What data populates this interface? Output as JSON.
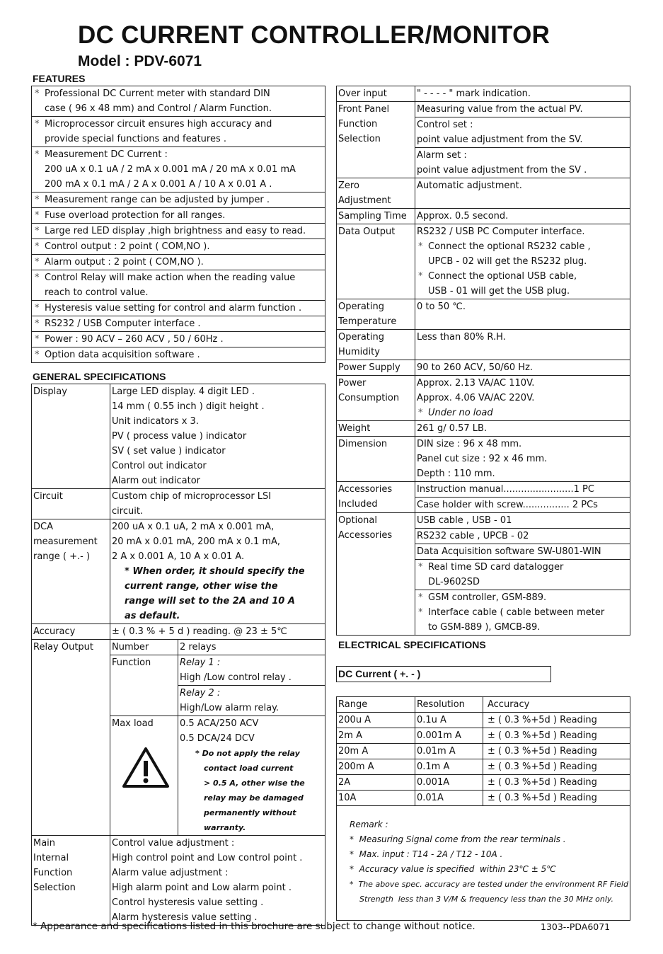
{
  "title": "DC CURRENT CONTROLLER/MONITOR",
  "model": "Model : PDV-6071",
  "features_heading": "FEATURES",
  "features": [
    {
      "lines": [
        {
          "text": "Professional DC Current meter with standard DIN",
          "kind": "bullet"
        },
        {
          "text": "case ( 96 x 48 mm)  and Control / Alarm Function.",
          "kind": "cont"
        }
      ]
    },
    {
      "lines": [
        {
          "text": "Microprocessor circuit ensures high accuracy and",
          "kind": "bullet"
        },
        {
          "text": "provide special functions and features .",
          "kind": "cont"
        }
      ]
    },
    {
      "lines": [
        {
          "text": "Measurement DC Current :",
          "kind": "bullet"
        },
        {
          "text": "200 uA x 0.1 uA / 2 mA x 0.001 mA / 20 mA x 0.01 mA",
          "kind": "cont"
        },
        {
          "text": "200 mA x 0.1 mA / 2 A x 0.001 A / 10 A x 0.01 A .",
          "kind": "cont"
        }
      ]
    },
    {
      "lines": [
        {
          "text": "Measurement range can be adjusted by jumper .",
          "kind": "bullet"
        }
      ]
    },
    {
      "lines": [
        {
          "text": "Fuse overload protection for all ranges.",
          "kind": "bullet"
        }
      ]
    },
    {
      "lines": [
        {
          "text": "Large red LED display ,high brightness and easy to read.",
          "kind": "bullet"
        }
      ]
    },
    {
      "lines": [
        {
          "text": "Control output : 2 point  ( COM,NO ).",
          "kind": "bullet"
        }
      ]
    },
    {
      "lines": [
        {
          "text": "Alarm output  : 2 point  ( COM,NO ).",
          "kind": "bullet"
        }
      ]
    },
    {
      "lines": [
        {
          "text": "Control Relay will make action when the reading value",
          "kind": "bullet"
        },
        {
          "text": "reach to control value.",
          "kind": "cont"
        }
      ]
    },
    {
      "lines": [
        {
          "text": "Hysteresis value setting for control and alarm function .",
          "kind": "bullet"
        }
      ]
    },
    {
      "lines": [
        {
          "text": "RS232 / USB Computer interface .",
          "kind": "bullet"
        }
      ]
    },
    {
      "lines": [
        {
          "text": "Power : 90 ACV –  260 ACV , 50 / 60Hz .",
          "kind": "bullet"
        }
      ]
    },
    {
      "lines": [
        {
          "text": "Option data acquisition software .",
          "kind": "bullet"
        }
      ]
    }
  ],
  "general_heading": "GENERAL SPECIFICATIONS",
  "general": [
    {
      "label": [
        "Display"
      ],
      "groups": [
        [
          {
            "text": "Large LED display. 4 digit LED ."
          },
          {
            "text": "14 mm ( 0.55 inch ) digit height ."
          },
          {
            "text": "Unit indicators x 3."
          },
          {
            "text": "PV ( process value ) indicator"
          },
          {
            "text": "SV ( set value ) indicator"
          },
          {
            "text": "Control out indicator"
          },
          {
            "text": "Alarm out indicator"
          }
        ]
      ]
    },
    {
      "label": [
        "Circuit"
      ],
      "groups": [
        [
          {
            "text": "Custom chip of microprocessor LSI"
          },
          {
            "text": "circuit."
          }
        ]
      ]
    },
    {
      "label": [
        "DCA",
        "measurement",
        "range ( +.- )"
      ],
      "groups": [
        [
          {
            "text": "200 uA x 0.1 uA, 2 mA x 0.001 mA,"
          },
          {
            "text": "20 mA x 0.01 mA, 200 mA x 0.1 mA,"
          },
          {
            "text": "2 A x 0.001 A, 10 A x 0.01 A."
          },
          {
            "text": "* When order, it should specify the",
            "kind": "note"
          },
          {
            "text": "current range, other wise the",
            "kind": "note cont"
          },
          {
            "text": "range will set to the 2A and 10 A",
            "kind": "note cont"
          },
          {
            "text": "as default.",
            "kind": "note cont"
          }
        ]
      ]
    },
    {
      "label": [
        "Accuracy"
      ],
      "groups": [
        [
          {
            "text": "±  ( 0.3 % + 5 d ) reading.  @ 23 ±  5℃"
          }
        ]
      ]
    }
  ],
  "relay": {
    "label": "Relay Output",
    "rows": [
      {
        "key": "Number",
        "groups": [
          [
            {
              "text": "2 relays"
            }
          ]
        ]
      },
      {
        "key": "Function",
        "groups": [
          [
            {
              "text": "Relay 1 :",
              "kind": "italic"
            },
            {
              "text": "High /Low control relay ."
            }
          ],
          [
            {
              "text": "Relay 2 :",
              "kind": "italic"
            },
            {
              "text": "High/Low alarm relay."
            }
          ]
        ]
      },
      {
        "key": "Max load",
        "icon": "warning-triangle",
        "groups": [
          [
            {
              "text": "0.5 ACA/250 ACV"
            },
            {
              "text": "0.5 DCA/24 DCV"
            },
            {
              "text": "* Do not apply the relay",
              "kind": "warn1"
            },
            {
              "text": "contact load current",
              "kind": "warn"
            },
            {
              "text": "> 0.5 A, other wise the",
              "kind": "warn"
            },
            {
              "text": "relay may be damaged",
              "kind": "warn"
            },
            {
              "text": "permanently without",
              "kind": "warn"
            },
            {
              "text": "warranty.",
              "kind": "warn"
            }
          ]
        ]
      }
    ]
  },
  "main_internal": {
    "label": [
      "Main",
      "Internal",
      "Function",
      "Selection"
    ],
    "lines": [
      "Control value adjustment :",
      "High control point and Low control point .",
      "Alarm value adjustment :",
      "High alarm point and Low alarm point .",
      "Control hysteresis value setting .",
      "Alarm hysteresis value setting ."
    ]
  },
  "right": [
    {
      "label": [
        "Over input"
      ],
      "groups": [
        [
          {
            "text": "\" - - - - \" mark indication."
          }
        ]
      ]
    },
    {
      "label": [
        "Front Panel",
        "Function",
        "Selection"
      ],
      "groups": [
        [
          {
            "text": "Measuring value from the actual PV."
          }
        ],
        [
          {
            "text": "Control set :"
          },
          {
            "text": "point value adjustment from the SV."
          }
        ],
        [
          {
            "text": "Alarm set :"
          },
          {
            "text": "point value adjustment from the SV ."
          }
        ]
      ]
    },
    {
      "label": [
        "Zero",
        "Adjustment"
      ],
      "groups": [
        [
          {
            "text": "Automatic adjustment."
          },
          {
            "text": ""
          }
        ]
      ]
    },
    {
      "label": [
        "Sampling Time"
      ],
      "groups": [
        [
          {
            "text": "Approx. 0.5 second."
          }
        ]
      ]
    },
    {
      "label": [
        "Data Output"
      ],
      "groups": [
        [
          {
            "text": "RS232 / USB PC Computer interface."
          },
          {
            "text": "Connect the optional RS232 cable ,",
            "kind": "bullet"
          },
          {
            "text": "UPCB - 02 will get the RS232 plug.",
            "kind": "cont"
          },
          {
            "text": "Connect the optional USB cable,",
            "kind": "bullet"
          },
          {
            "text": "USB - 01 will get the USB plug.",
            "kind": "cont"
          }
        ]
      ]
    },
    {
      "label": [
        "Operating",
        "Temperature"
      ],
      "groups": [
        [
          {
            "text": "0 to 50 ℃."
          },
          {
            "text": ""
          }
        ]
      ]
    },
    {
      "label": [
        "Operating",
        "Humidity"
      ],
      "groups": [
        [
          {
            "text": "Less than 80% R.H."
          },
          {
            "text": ""
          }
        ]
      ]
    },
    {
      "label": [
        "Power Supply"
      ],
      "groups": [
        [
          {
            "text": "90 to 260 ACV, 50/60 Hz."
          }
        ]
      ]
    },
    {
      "label": [
        "Power",
        "Consumption"
      ],
      "groups": [
        [
          {
            "text": "Approx. 2.13 VA/AC 110V."
          },
          {
            "text": "Approx. 4.06 VA/AC 220V."
          },
          {
            "text": "Under no load",
            "kind": "bullet italic"
          }
        ]
      ]
    },
    {
      "label": [
        "Weight"
      ],
      "groups": [
        [
          {
            "text": "261 g/ 0.57 LB."
          }
        ]
      ]
    },
    {
      "label": [
        "Dimension"
      ],
      "groups": [
        [
          {
            "text": "DIN size : 96 x 48 mm."
          },
          {
            "text": "Panel cut size : 92 x 46 mm."
          },
          {
            "text": "Depth  : 110 mm."
          }
        ]
      ]
    },
    {
      "label": [
        "Accessories",
        "Included"
      ],
      "groups": [
        [
          {
            "text": "Instruction manual........................1 PC"
          }
        ],
        [
          {
            "text": "Case holder with screw................ 2 PCs"
          }
        ]
      ]
    },
    {
      "label": [
        "Optional",
        "Accessories"
      ],
      "groups": [
        [
          {
            "text": "USB cable , USB - 01"
          }
        ],
        [
          {
            "text": "RS232 cable , UPCB - 02"
          }
        ],
        [
          {
            "text": "Data Acquisition software SW-U801-WIN"
          }
        ],
        [
          {
            "text": "Real time SD card datalogger",
            "kind": "bullet"
          },
          {
            "text": "DL-9602SD",
            "kind": "cont"
          }
        ],
        [
          {
            "text": "GSM controller, GSM-889.",
            "kind": "bullet"
          },
          {
            "text": "Interface cable ( cable between meter",
            "kind": "bullet"
          },
          {
            "text": "to GSM-889 ), GMCB-89.",
            "kind": "cont"
          }
        ]
      ]
    }
  ],
  "electrical_heading": "ELECTRICAL SPECIFICATIONS",
  "dc_current_label": "DC Current ( +. - )",
  "range_table": {
    "headers": [
      "Range",
      "Resolution",
      "Accuracy"
    ],
    "rows": [
      [
        "200u A",
        "0.1u A",
        "± ( 0.3 %+5d )  Reading"
      ],
      [
        "2m A",
        "0.001m A",
        "± ( 0.3 %+5d )  Reading"
      ],
      [
        "20m A",
        "0.01m A",
        "± ( 0.3 %+5d )  Reading"
      ],
      [
        "200m A",
        "0.1m A",
        "± ( 0.3 %+5d )  Reading"
      ],
      [
        "2A",
        "0.001A",
        "± ( 0.3 %+5d )  Reading"
      ],
      [
        "10A",
        "0.01A",
        "± ( 0.3 %+5d )  Reading"
      ]
    ]
  },
  "remark": {
    "title": "Remark :",
    "items": [
      "*  Measuring Signal come from the rear terminals .",
      "*  Max. input : T14 - 2A / T12 - 10A .",
      "*  Accuracy value is specified  within 23℃ ± 5℃",
      "*  The above spec. accuracy are tested under the environment RF Field",
      "    Strength  less than 3 V/M & frequency less than the 30 MHz only."
    ]
  },
  "footer": {
    "notice": "* Appearance and specifications listed in this brochure are subject to change without notice.",
    "code": "1303--PDA6071"
  }
}
